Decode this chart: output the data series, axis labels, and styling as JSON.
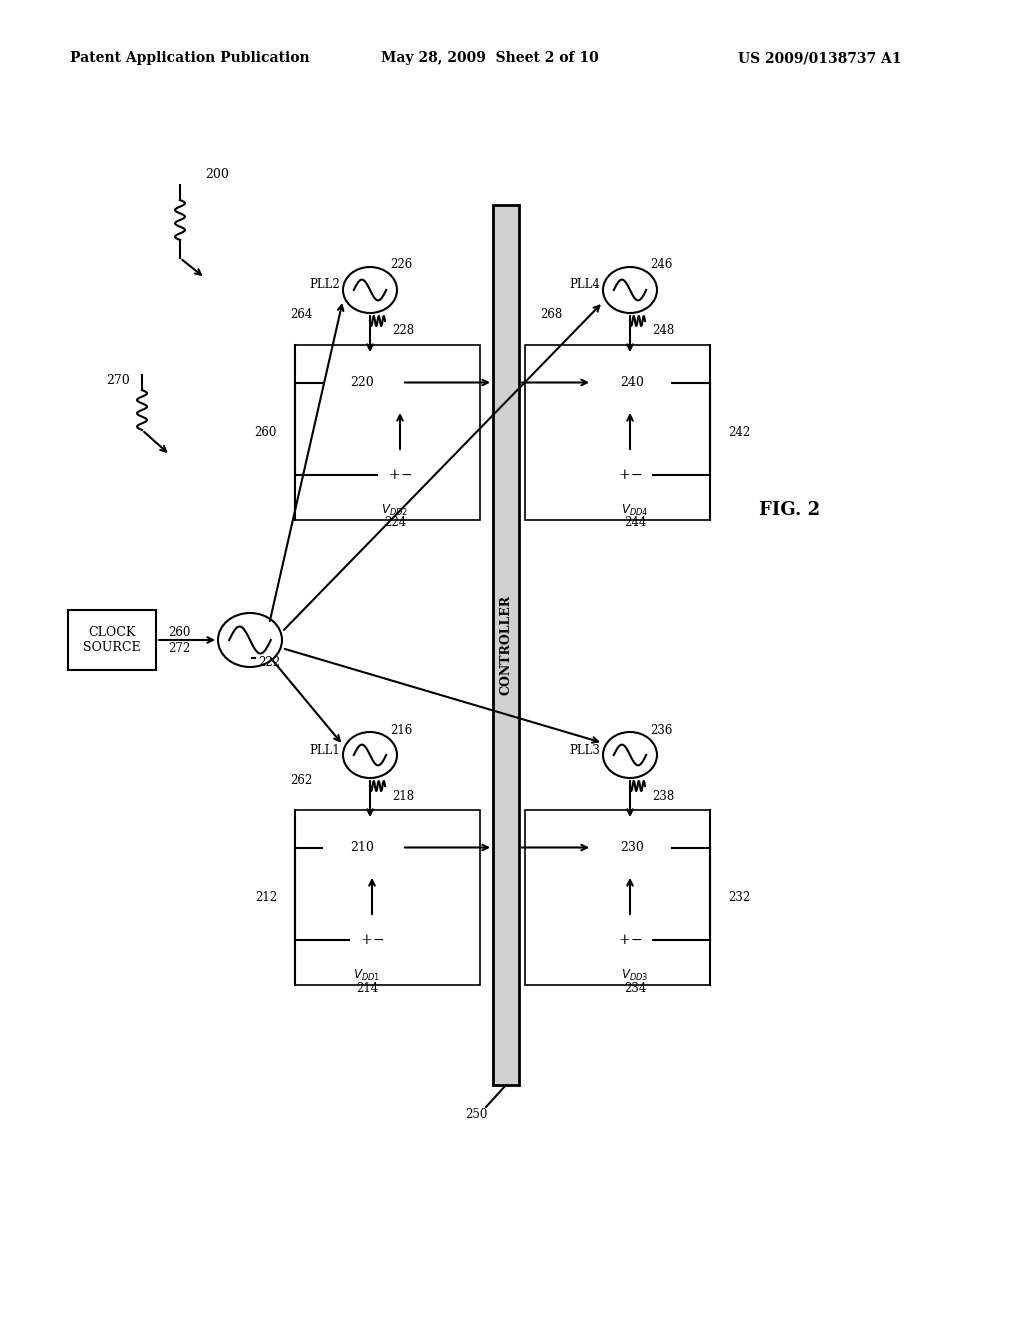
{
  "bg_color": "#ffffff",
  "header_left": "Patent Application Publication",
  "header_mid": "May 28, 2009  Sheet 2 of 10",
  "header_right": "US 2009/0138737 A1",
  "fig_label": "FIG. 2"
}
